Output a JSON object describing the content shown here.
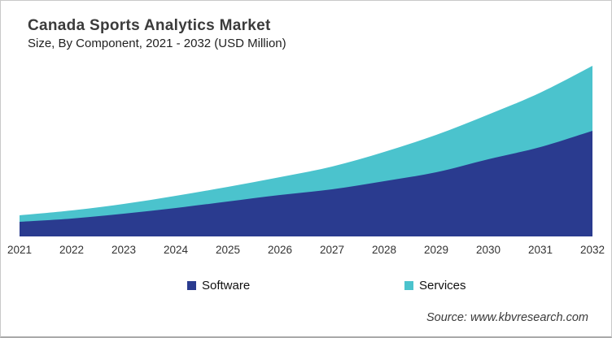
{
  "header": {
    "title": "Canada Sports Analytics Market",
    "subtitle": "Size, By Component, 2021 - 2032 (USD Million)"
  },
  "chart_data": {
    "type": "area",
    "stacked": true,
    "title": "Canada Sports Analytics Market",
    "subtitle": "Size, By Component, 2021 - 2032 (USD Million)",
    "xlabel": "",
    "ylabel": "",
    "units": "USD Million",
    "y_axis_shown": false,
    "grid": false,
    "legend_position": "bottom",
    "categories": [
      "2021",
      "2022",
      "2023",
      "2024",
      "2025",
      "2026",
      "2027",
      "2028",
      "2029",
      "2030",
      "2031",
      "2032"
    ],
    "series": [
      {
        "name": "Software",
        "color": "#2a3b8f",
        "values": [
          18,
          22,
          28,
          35,
          43,
          51,
          58,
          68,
          79,
          95,
          110,
          130
        ]
      },
      {
        "name": "Services",
        "color": "#4bc3cd",
        "values": [
          8,
          10,
          12,
          15,
          18,
          22,
          28,
          36,
          46,
          55,
          67,
          80
        ]
      }
    ],
    "ylim": [
      0,
      220
    ]
  },
  "footer": {
    "source": "Source: www.kbvresearch.com"
  }
}
